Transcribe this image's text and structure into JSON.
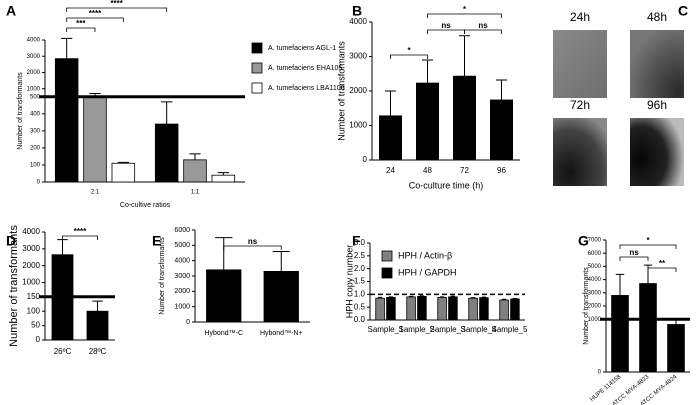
{
  "chart_data": [
    {
      "type": "bar",
      "panel_label": "A",
      "categories": [
        "2:1",
        "1:1"
      ],
      "series": [
        {
          "name": "A. tumefaciens AGL-1",
          "color": "#000000",
          "values": [
            2850,
            340
          ],
          "errors": [
            1250,
            130
          ]
        },
        {
          "name": "A. tumefaciens EHA105",
          "color": "#999999",
          "values": [
            550,
            130
          ],
          "errors": [
            150,
            35
          ]
        },
        {
          "name": "A. tumefaciens LBA1100",
          "color": "#ffffff",
          "values": [
            110,
            40
          ],
          "errors": [
            5,
            15
          ]
        }
      ],
      "x_label": "Co-cultive ratios",
      "y_label": "Number of transformants",
      "ylim": [
        0,
        4000
      ],
      "ybreak": 500,
      "yticks": [
        0,
        100,
        200,
        300,
        400,
        500,
        1000,
        2000,
        3000,
        4000
      ],
      "annotations": [
        "***",
        "****",
        "****"
      ]
    },
    {
      "type": "bar",
      "panel_label": "B",
      "categories": [
        "24",
        "48",
        "72",
        "96"
      ],
      "values": [
        1280,
        2230,
        2430,
        1740
      ],
      "errors": [
        720,
        670,
        1170,
        580
      ],
      "color": "#000000",
      "x_label": "Co-culture time (h)",
      "y_label": "Number of transformants",
      "ylim": [
        0,
        4000
      ],
      "yticks": [
        0,
        1000,
        2000,
        3000,
        4000
      ],
      "annotations": [
        "*",
        "ns",
        "ns",
        "*"
      ]
    },
    {
      "type": "bar",
      "panel_label": "D",
      "categories": [
        "26ºC",
        "28ºC"
      ],
      "values": [
        2650,
        100
      ],
      "errors": [
        900,
        35
      ],
      "color": "#000000",
      "y_label": "Number of transformants",
      "ylim": [
        0,
        4000
      ],
      "ybreak": 150,
      "yticks": [
        0,
        50,
        100,
        150,
        1000,
        2000,
        3000,
        4000
      ],
      "annotations": [
        "****"
      ]
    },
    {
      "type": "bar",
      "panel_label": "E",
      "categories": [
        "Hybond™-C",
        "Hybond™-N+"
      ],
      "values": [
        3400,
        3300
      ],
      "errors": [
        2100,
        1300
      ],
      "color": "#000000",
      "y_label": "Number of transformants",
      "ylim": [
        0,
        6000
      ],
      "yticks": [
        0,
        1000,
        2000,
        3000,
        4000,
        5000,
        6000
      ],
      "annotations": [
        "ns"
      ]
    },
    {
      "type": "bar",
      "panel_label": "F",
      "categories": [
        "Sample_1",
        "Sample_2",
        "Sample_3",
        "Sample_4",
        "Sample_5"
      ],
      "series": [
        {
          "name": "HPH / Actin-β",
          "color": "#808080",
          "values": [
            0.85,
            0.9,
            0.88,
            0.85,
            0.78
          ],
          "errors": [
            0.03,
            0.02,
            0.02,
            0.02,
            0.03
          ]
        },
        {
          "name": "HPH / GAPDH",
          "color": "#000000",
          "values": [
            0.88,
            0.92,
            0.9,
            0.87,
            0.82
          ],
          "errors": [
            0.02,
            0.02,
            0.03,
            0.02,
            0.02
          ]
        }
      ],
      "y_label": "HPH copy number",
      "reference_line": 1,
      "ylim": [
        0,
        3
      ],
      "yticks": [
        {
          "value": 0,
          "label": "0.0"
        },
        0.5,
        {
          "value": 1,
          "label": "1.0"
        },
        1.5,
        {
          "value": 2,
          "label": "2.0"
        },
        2.5,
        {
          "value": 3,
          "label": "3.0"
        }
      ]
    },
    {
      "type": "bar",
      "panel_label": "G",
      "categories": [
        "HUPE 114158",
        "ATCC MYA-4823",
        "ATCC MYA-4824"
      ],
      "values": [
        2800,
        3700,
        900
      ],
      "errors": [
        1600,
        1400,
        150
      ],
      "color": "#000000",
      "y_label": "Number of transformants",
      "ylim": [
        0,
        7000
      ],
      "ybreak": 1000,
      "yticks": [
        0,
        1000,
        2000,
        3000,
        4000,
        5000,
        6000,
        7000
      ],
      "annotations": [
        "*",
        "ns",
        "**"
      ]
    }
  ],
  "images": {
    "panel_label": "C",
    "captions": [
      "24h",
      "48h",
      "72h",
      "96h"
    ]
  }
}
